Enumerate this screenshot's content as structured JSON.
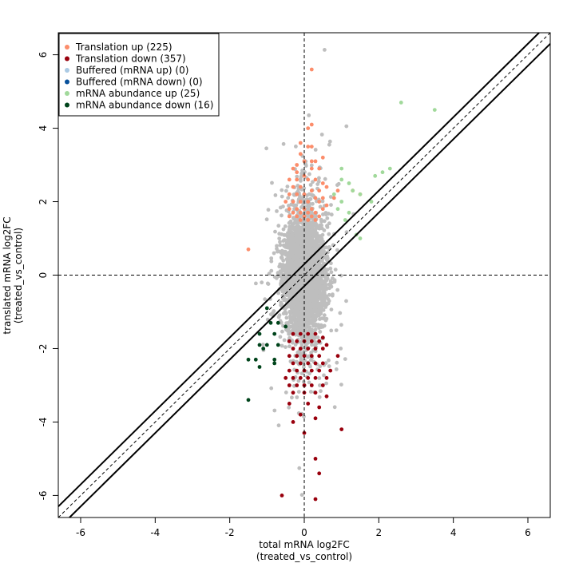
{
  "chart_data": {
    "type": "scatter",
    "xlabel_line1": "total mRNA log2FC",
    "xlabel_line2": "(treated_vs_control)",
    "ylabel_line1": "translated mRNA log2FC",
    "ylabel_line2": "(treated_vs_control)",
    "xlim": [
      -6.6,
      6.6
    ],
    "ylim": [
      -6.6,
      6.6
    ],
    "x_ticks": [
      -6,
      -4,
      -2,
      0,
      2,
      4,
      6
    ],
    "y_ticks": [
      -6,
      -4,
      -2,
      0,
      2,
      4,
      6
    ],
    "x_tick_labels": [
      "-6",
      "-4",
      "-2",
      "0",
      "2",
      "4",
      "6"
    ],
    "y_tick_labels": [
      "-6",
      "-4",
      "-2",
      "0",
      "2",
      "4",
      "6"
    ],
    "legend_position": "top-left",
    "grid": false,
    "reference_lines": {
      "dashed_horizontal_y": 0,
      "dashed_vertical_x": 0,
      "dashed_diagonal": {
        "slope": 1,
        "intercept": 0
      },
      "solid_diagonals": [
        {
          "slope": 1,
          "intercept": 0.3
        },
        {
          "slope": 1,
          "intercept": -0.3
        }
      ]
    },
    "background_color": "#bebebe",
    "series": [
      {
        "name": "Translation up (225)",
        "color": "#fc8d6b",
        "points": [
          [
            0.2,
            4.1
          ],
          [
            0.1,
            4.0
          ],
          [
            -0.1,
            3.6
          ],
          [
            0.1,
            3.5
          ],
          [
            0.2,
            3.5
          ],
          [
            -0.1,
            3.3
          ],
          [
            0.0,
            3.1
          ],
          [
            0.2,
            3.1
          ],
          [
            0.3,
            3.1
          ],
          [
            -0.3,
            2.9
          ],
          [
            -0.2,
            2.8
          ],
          [
            0.2,
            2.9
          ],
          [
            0.4,
            2.9
          ],
          [
            -0.4,
            2.6
          ],
          [
            -0.2,
            2.6
          ],
          [
            0.1,
            2.6
          ],
          [
            0.3,
            2.6
          ],
          [
            0.5,
            2.5
          ],
          [
            -0.3,
            2.4
          ],
          [
            -0.1,
            2.4
          ],
          [
            0.2,
            2.3
          ],
          [
            0.4,
            2.3
          ],
          [
            0.6,
            2.4
          ],
          [
            -0.4,
            2.2
          ],
          [
            -0.2,
            2.2
          ],
          [
            0.0,
            2.2
          ],
          [
            0.3,
            2.1
          ],
          [
            0.5,
            2.1
          ],
          [
            -0.5,
            2.0
          ],
          [
            -0.3,
            2.0
          ],
          [
            -0.1,
            2.0
          ],
          [
            0.1,
            2.0
          ],
          [
            0.4,
            2.0
          ],
          [
            0.6,
            1.9
          ],
          [
            -0.4,
            1.8
          ],
          [
            -0.2,
            1.8
          ],
          [
            0.0,
            1.8
          ],
          [
            0.2,
            1.8
          ],
          [
            0.5,
            1.8
          ],
          [
            -0.3,
            1.7
          ],
          [
            -0.1,
            1.7
          ],
          [
            0.1,
            1.7
          ],
          [
            0.3,
            1.7
          ],
          [
            -0.4,
            1.6
          ],
          [
            -0.2,
            1.6
          ],
          [
            0.0,
            1.6
          ],
          [
            0.2,
            1.6
          ],
          [
            0.4,
            1.6
          ],
          [
            -0.1,
            1.5
          ],
          [
            0.1,
            1.5
          ],
          [
            0.3,
            1.5
          ],
          [
            0.8,
            2.1
          ],
          [
            0.9,
            2.3
          ],
          [
            1.3,
            2.3
          ],
          [
            -1.5,
            0.7
          ],
          [
            0.2,
            5.6
          ],
          [
            1.5,
            2.2
          ],
          [
            0.5,
            3.2
          ],
          [
            -0.2,
            3.0
          ],
          [
            0.0,
            2.7
          ]
        ]
      },
      {
        "name": "Translation down (357)",
        "color": "#99000d",
        "points": [
          [
            -0.3,
            -1.6
          ],
          [
            -0.1,
            -1.6
          ],
          [
            0.1,
            -1.6
          ],
          [
            0.3,
            -1.6
          ],
          [
            0.5,
            -1.7
          ],
          [
            -0.4,
            -1.8
          ],
          [
            -0.2,
            -1.8
          ],
          [
            0.0,
            -1.8
          ],
          [
            0.2,
            -1.8
          ],
          [
            0.4,
            -1.8
          ],
          [
            0.6,
            -1.9
          ],
          [
            -0.3,
            -2.0
          ],
          [
            -0.1,
            -2.0
          ],
          [
            0.1,
            -2.0
          ],
          [
            0.3,
            -2.0
          ],
          [
            0.5,
            -2.0
          ],
          [
            -0.4,
            -2.2
          ],
          [
            -0.2,
            -2.2
          ],
          [
            0.0,
            -2.2
          ],
          [
            0.2,
            -2.2
          ],
          [
            0.4,
            -2.2
          ],
          [
            -0.3,
            -2.4
          ],
          [
            -0.1,
            -2.4
          ],
          [
            0.1,
            -2.4
          ],
          [
            0.3,
            -2.4
          ],
          [
            0.5,
            -2.4
          ],
          [
            -0.4,
            -2.6
          ],
          [
            -0.2,
            -2.6
          ],
          [
            0.0,
            -2.6
          ],
          [
            0.2,
            -2.6
          ],
          [
            0.4,
            -2.6
          ],
          [
            0.7,
            -2.6
          ],
          [
            -0.5,
            -2.8
          ],
          [
            -0.3,
            -2.8
          ],
          [
            -0.1,
            -2.8
          ],
          [
            0.1,
            -2.8
          ],
          [
            0.3,
            -2.8
          ],
          [
            0.6,
            -2.8
          ],
          [
            -0.4,
            -3.0
          ],
          [
            -0.2,
            -3.0
          ],
          [
            0.0,
            -3.0
          ],
          [
            0.2,
            -3.0
          ],
          [
            0.5,
            -3.0
          ],
          [
            -0.3,
            -3.2
          ],
          [
            0.0,
            -3.2
          ],
          [
            0.3,
            -3.2
          ],
          [
            0.6,
            -3.3
          ],
          [
            -0.4,
            -3.5
          ],
          [
            0.1,
            -3.5
          ],
          [
            0.4,
            -3.6
          ],
          [
            -0.1,
            -3.8
          ],
          [
            0.3,
            -3.9
          ],
          [
            -0.3,
            -4.0
          ],
          [
            0.0,
            -4.3
          ],
          [
            1.0,
            -4.2
          ],
          [
            0.3,
            -5.0
          ],
          [
            0.4,
            -5.4
          ],
          [
            -0.6,
            -6.0
          ],
          [
            0.3,
            -6.1
          ],
          [
            0.9,
            -2.2
          ]
        ]
      },
      {
        "name": "Buffered (mRNA up) (0)",
        "color": "#abcae4",
        "points": []
      },
      {
        "name": "Buffered (mRNA down) (0)",
        "color": "#08519c",
        "points": []
      },
      {
        "name": "mRNA abundance up (25)",
        "color": "#a1d99b",
        "points": [
          [
            2.6,
            4.7
          ],
          [
            3.5,
            4.5
          ],
          [
            2.3,
            2.9
          ],
          [
            2.1,
            2.8
          ],
          [
            1.9,
            2.7
          ],
          [
            1.0,
            2.9
          ],
          [
            1.0,
            2.6
          ],
          [
            1.2,
            2.5
          ],
          [
            1.3,
            2.3
          ],
          [
            1.0,
            2.0
          ],
          [
            1.2,
            1.7
          ],
          [
            1.1,
            1.5
          ],
          [
            1.4,
            1.1
          ],
          [
            1.5,
            1.0
          ],
          [
            0.8,
            2.2
          ],
          [
            1.5,
            2.2
          ],
          [
            1.8,
            2.0
          ],
          [
            0.9,
            1.8
          ]
        ]
      },
      {
        "name": "mRNA abundance down (16)",
        "color": "#00441b",
        "points": [
          [
            -1.0,
            -0.9
          ],
          [
            -0.9,
            -1.3
          ],
          [
            -0.7,
            -1.3
          ],
          [
            -0.5,
            -1.4
          ],
          [
            -0.8,
            -1.6
          ],
          [
            -1.2,
            -1.6
          ],
          [
            -1.2,
            -1.9
          ],
          [
            -1.0,
            -1.9
          ],
          [
            -0.7,
            -1.9
          ],
          [
            -1.1,
            -2.0
          ],
          [
            -1.5,
            -2.3
          ],
          [
            -1.3,
            -2.3
          ],
          [
            -0.8,
            -2.3
          ],
          [
            -0.8,
            -2.4
          ],
          [
            -1.2,
            -2.5
          ],
          [
            -1.5,
            -3.4
          ]
        ]
      }
    ]
  }
}
